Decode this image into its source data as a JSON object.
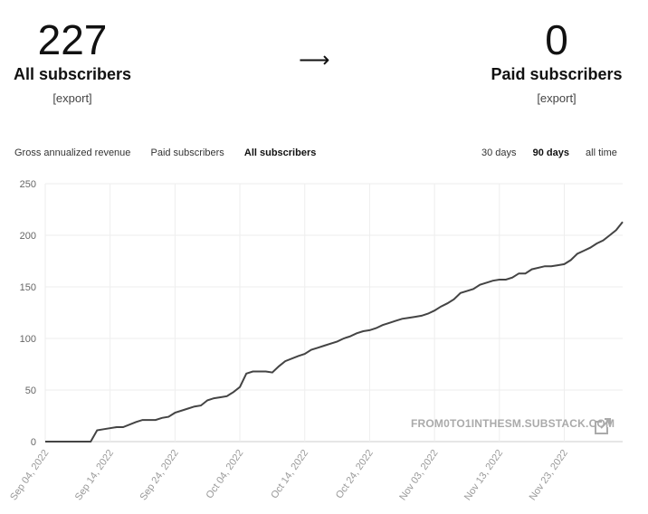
{
  "stats": {
    "all_count": "227",
    "all_label": "All subscribers",
    "paid_count": "0",
    "paid_label": "Paid subscribers",
    "export_label": "[export]",
    "arrow": "⟶"
  },
  "metric_tabs": [
    "Gross annualized revenue",
    "Paid subscribers",
    "All subscribers"
  ],
  "range_tabs": [
    "30 days",
    "90 days",
    "all time"
  ],
  "active_metric": "All subscribers",
  "active_range": "90 days",
  "watermark": "FROM0TO1INTHESM.SUBSTACK.COM",
  "colors": {
    "line": "#444444",
    "grid": "#eeeeee",
    "watermark": "#aaaaaa"
  },
  "chart_data": {
    "type": "line",
    "title": "",
    "xlabel": "",
    "ylabel": "",
    "ylim": [
      0,
      250
    ],
    "yticks": [
      0,
      50,
      100,
      150,
      200,
      250
    ],
    "xticks": [
      "Sep 04, 2022",
      "Sep 14, 2022",
      "Sep 24, 2022",
      "Oct 04, 2022",
      "Oct 14, 2022",
      "Oct 24, 2022",
      "Nov 03, 2022",
      "Nov 13, 2022",
      "Nov 23, 2022"
    ],
    "grid": true,
    "series": [
      {
        "x": [
          "2022-09-04",
          "2022-09-11",
          "2022-09-12",
          "2022-09-13",
          "2022-09-15",
          "2022-09-16",
          "2022-09-18",
          "2022-09-19",
          "2022-09-21",
          "2022-09-22",
          "2022-09-23",
          "2022-09-24",
          "2022-09-26",
          "2022-09-27",
          "2022-09-28",
          "2022-09-29",
          "2022-09-30",
          "2022-10-01",
          "2022-10-02",
          "2022-10-03",
          "2022-10-04",
          "2022-10-05",
          "2022-10-06",
          "2022-10-08",
          "2022-10-09",
          "2022-10-10",
          "2022-10-11",
          "2022-10-13",
          "2022-10-14",
          "2022-10-15",
          "2022-10-16",
          "2022-10-17",
          "2022-10-19",
          "2022-10-20",
          "2022-10-21",
          "2022-10-22",
          "2022-10-23",
          "2022-10-24",
          "2022-10-25",
          "2022-10-26",
          "2022-10-27",
          "2022-10-28",
          "2022-10-29",
          "2022-10-30",
          "2022-10-31",
          "2022-11-01",
          "2022-11-02",
          "2022-11-03",
          "2022-11-04",
          "2022-11-05",
          "2022-11-06",
          "2022-11-07",
          "2022-11-08",
          "2022-11-09",
          "2022-11-10",
          "2022-11-11",
          "2022-11-12",
          "2022-11-13",
          "2022-11-14",
          "2022-11-15",
          "2022-11-16",
          "2022-11-17",
          "2022-11-18",
          "2022-11-20",
          "2022-11-21",
          "2022-11-22",
          "2022-11-23",
          "2022-11-24",
          "2022-11-25",
          "2022-11-26",
          "2022-11-27",
          "2022-11-28",
          "2022-11-29",
          "2022-11-30",
          "2022-12-01",
          "2022-12-02"
        ],
        "y": [
          0,
          0,
          11,
          12,
          14,
          14,
          19,
          21,
          21,
          23,
          24,
          28,
          32,
          34,
          35,
          40,
          42,
          43,
          44,
          48,
          53,
          66,
          68,
          68,
          67,
          73,
          78,
          83,
          85,
          89,
          91,
          93,
          97,
          100,
          102,
          105,
          107,
          108,
          110,
          113,
          115,
          117,
          119,
          120,
          121,
          122,
          124,
          127,
          131,
          134,
          138,
          144,
          146,
          148,
          152,
          154,
          156,
          157,
          157,
          159,
          163,
          163,
          167,
          170,
          170,
          171,
          172,
          176,
          182,
          185,
          188,
          192,
          195,
          200,
          205,
          213
        ]
      }
    ]
  }
}
